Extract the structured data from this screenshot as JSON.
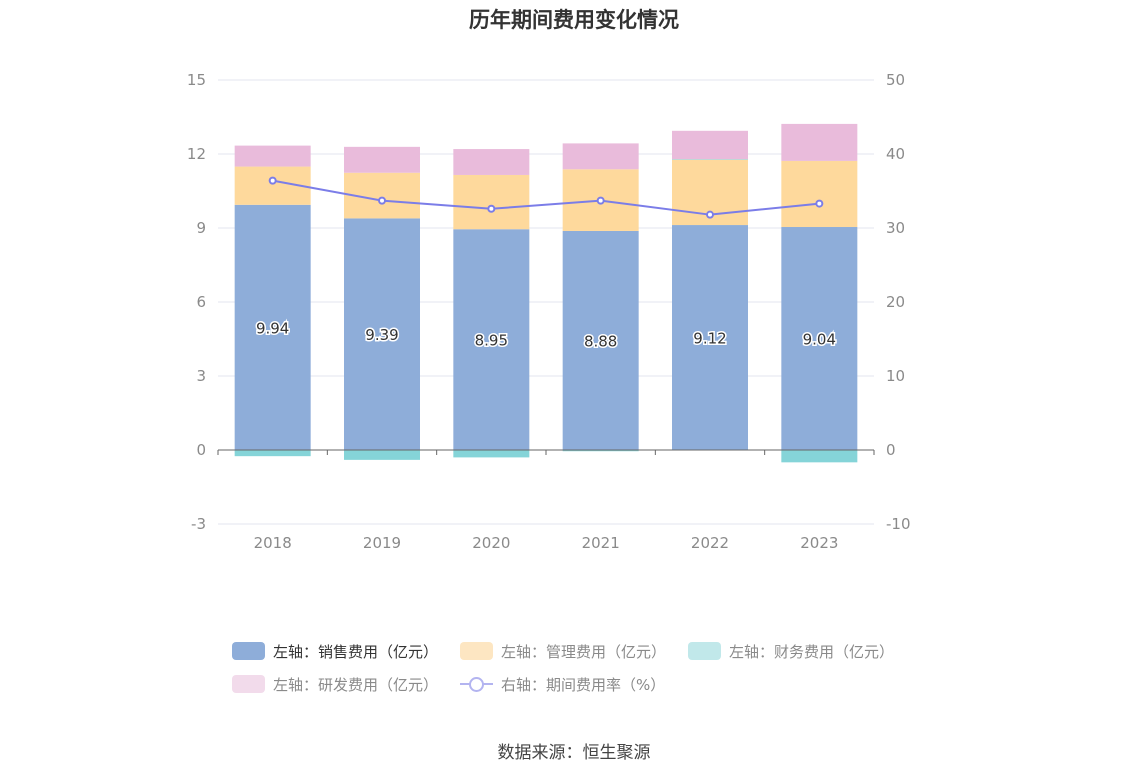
{
  "chart_data": {
    "type": "bar",
    "title": "历年期间费用变化情况",
    "categories": [
      "2018",
      "2019",
      "2020",
      "2021",
      "2022",
      "2023"
    ],
    "series": [
      {
        "name": "左轴：销售费用（亿元）",
        "axis": "left",
        "kind": "bar",
        "color": "#8eadd9",
        "values": [
          9.94,
          9.39,
          8.95,
          8.88,
          9.12,
          9.04
        ],
        "labels": [
          "9.94",
          "9.39",
          "8.95",
          "8.88",
          "9.12",
          "9.04"
        ]
      },
      {
        "name": "左轴：管理费用（亿元）",
        "axis": "left",
        "kind": "bar",
        "color": "#fed99c",
        "values": [
          1.55,
          1.85,
          2.2,
          2.5,
          2.65,
          2.68
        ]
      },
      {
        "name": "左轴：财务费用（亿元）",
        "axis": "left",
        "kind": "bar",
        "color": "#85d4d8",
        "values": [
          -0.25,
          -0.4,
          -0.3,
          -0.05,
          0.02,
          -0.5
        ]
      },
      {
        "name": "左轴：研发费用（亿元）",
        "axis": "left",
        "kind": "bar",
        "color": "#e9bbdb",
        "values": [
          0.85,
          1.05,
          1.05,
          1.05,
          1.15,
          1.5
        ]
      },
      {
        "name": "右轴：期间费用率（%）",
        "axis": "right",
        "kind": "line",
        "color": "#7b7de8",
        "values": [
          36.4,
          33.7,
          32.6,
          33.7,
          31.8,
          33.3
        ]
      }
    ],
    "y_left": {
      "min": -3,
      "max": 15,
      "ticks": [
        "-3",
        "0",
        "3",
        "6",
        "9",
        "12",
        "15"
      ]
    },
    "y_right": {
      "min": -10,
      "max": 50,
      "ticks": [
        "-10",
        "0",
        "10",
        "20",
        "30",
        "40",
        "50"
      ]
    },
    "legend": {
      "position": "bottom"
    },
    "source": "数据来源：恒生聚源"
  }
}
